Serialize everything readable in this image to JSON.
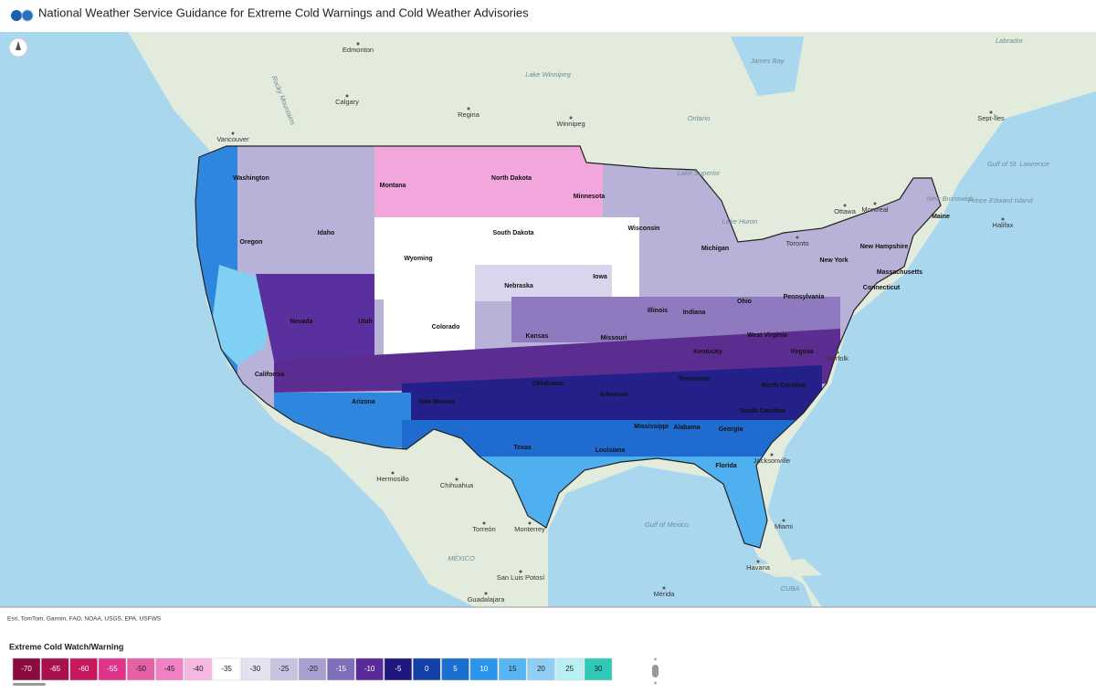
{
  "header": {
    "title": "National Weather Service Guidance for Extreme Cold Warnings and Cold Weather Advisories"
  },
  "map": {
    "states": [
      "Washington",
      "Montana",
      "North Dakota",
      "Minnesota",
      "Oregon",
      "Idaho",
      "Wyoming",
      "South Dakota",
      "Wisconsin",
      "Michigan",
      "Nevada",
      "Utah",
      "Colorado",
      "Nebraska",
      "Iowa",
      "Illinois",
      "Indiana",
      "Ohio",
      "Pennsylvania",
      "New York",
      "Kansas",
      "Missouri",
      "Kentucky",
      "West Virginia",
      "Virginia",
      "California",
      "Arizona",
      "New Mexico",
      "Oklahoma",
      "Arkansas",
      "Tennessee",
      "North Carolina",
      "South Carolina",
      "Mississippi",
      "Alabama",
      "Georgia",
      "Texas",
      "Louisiana",
      "Florida",
      "Maine",
      "New Hampshire",
      "Massachusetts",
      "Connecticut"
    ],
    "cities": [
      "Edmonton",
      "Calgary",
      "Regina",
      "Winnipeg",
      "Vancouver",
      "Ottawa",
      "Montreal",
      "Toronto",
      "Sept-Îles",
      "Halifax",
      "Hermosillo",
      "Chihuahua",
      "Torreón",
      "Monterrey",
      "San Luis Potosí",
      "Guadalajara",
      "Havana",
      "Mérida",
      "Miami",
      "Jacksonville",
      "Norfolk"
    ],
    "regions": [
      "Ontario",
      "James Bay",
      "Labrador",
      "Lake Winnipeg",
      "Lake Superior",
      "Lake Huron",
      "Gulf of Mexico",
      "MÉXICO",
      "CUBA",
      "Gulf of St. Lawrence",
      "New Brunswick",
      "Prince Edward Island",
      "Rocky Mountains"
    ],
    "attribution": "Esri, TomTom, Garmin, FAO, NOAA, USGS, EPA, USFWS"
  },
  "legend": {
    "title": "Extreme Cold Watch/Warning",
    "items": [
      {
        "label": -70,
        "color": "#8b0a3f"
      },
      {
        "label": -65,
        "color": "#a8104e"
      },
      {
        "label": -60,
        "color": "#c8175e"
      },
      {
        "label": -55,
        "color": "#e0338a"
      },
      {
        "label": -50,
        "color": "#e660a5"
      },
      {
        "label": -45,
        "color": "#f07fc4"
      },
      {
        "label": -40,
        "color": "#f7b7e3"
      },
      {
        "label": -35,
        "color": "#ffffff"
      },
      {
        "label": -30,
        "color": "#e4e1f0"
      },
      {
        "label": -25,
        "color": "#c8c3e1"
      },
      {
        "label": -20,
        "color": "#a99fd0"
      },
      {
        "label": -15,
        "color": "#7f6fbb"
      },
      {
        "label": -10,
        "color": "#5a2a9a"
      },
      {
        "label": -5,
        "color": "#1f1680"
      },
      {
        "label": 0,
        "color": "#1440a8"
      },
      {
        "label": 5,
        "color": "#1a6fd0"
      },
      {
        "label": 10,
        "color": "#2a95ea"
      },
      {
        "label": 15,
        "color": "#57b6f2"
      },
      {
        "label": 20,
        "color": "#8fcff5"
      },
      {
        "label": 25,
        "color": "#b9f0f5"
      },
      {
        "label": 30,
        "color": "#30c9b8"
      }
    ]
  }
}
